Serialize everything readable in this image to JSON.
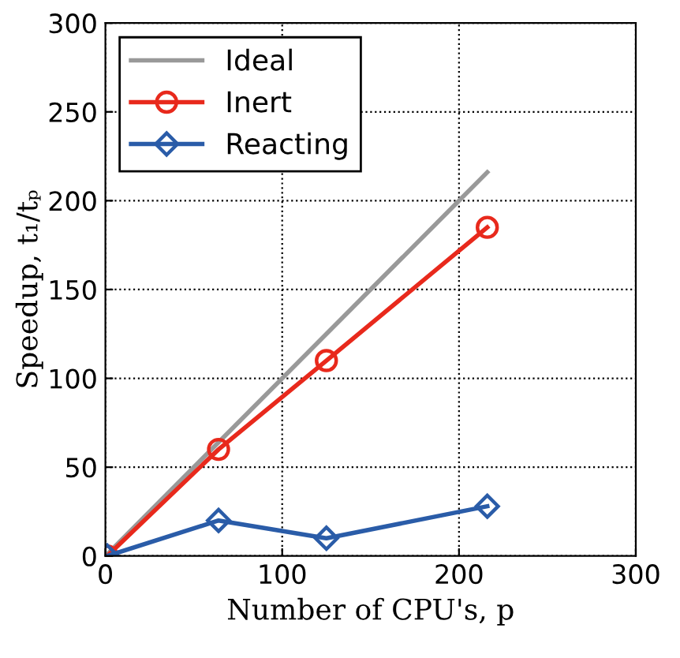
{
  "chart_data": {
    "type": "line",
    "xlabel": "Number of CPU's, p",
    "ylabel": "Speedup, t₁/tₚ",
    "xlim": [
      0,
      300
    ],
    "ylim": [
      0,
      300
    ],
    "xticks": [
      0,
      100,
      200,
      300
    ],
    "yticks": [
      0,
      50,
      100,
      150,
      200,
      250,
      300
    ],
    "grid": true,
    "legend": "top left",
    "series": [
      {
        "name": "Ideal",
        "color": "#999999",
        "x": [
          0,
          216
        ],
        "values": [
          0,
          216
        ],
        "marker": "none"
      },
      {
        "name": "Inert",
        "color": "#e8291c",
        "x": [
          1,
          64,
          125,
          216
        ],
        "values": [
          0,
          60,
          110,
          185
        ],
        "marker": "circle"
      },
      {
        "name": "Reacting",
        "color": "#2a5ca8",
        "x": [
          1,
          64,
          125,
          216
        ],
        "values": [
          0,
          20,
          10,
          28
        ],
        "marker": "diamond"
      }
    ]
  }
}
